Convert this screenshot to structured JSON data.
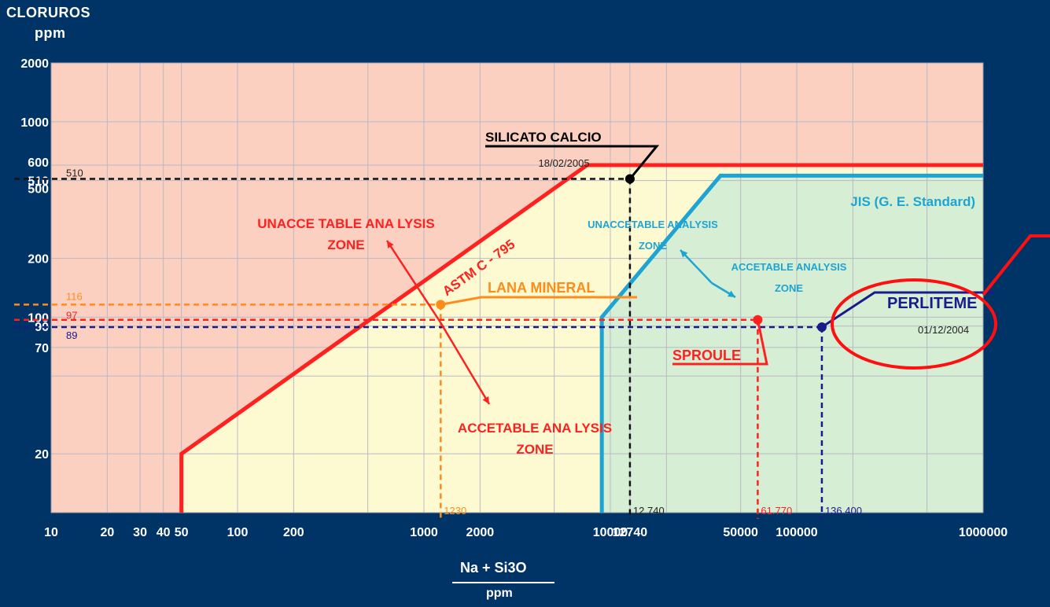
{
  "chart_data": {
    "type": "line",
    "ylabel": "CLORUROS",
    "ylabel_unit": "ppm",
    "xlabel": "Na + Si3O",
    "xlabel_unit": "ppm",
    "xscale": "log",
    "yscale": "log",
    "xlim": [
      10,
      1000000
    ],
    "ylim": [
      10,
      2000
    ],
    "x_ticks": [
      "10",
      "20",
      "30",
      "40",
      "50",
      "100",
      "200",
      "1000",
      "2000",
      "10000",
      "12740",
      "50000",
      "100000",
      "1000000"
    ],
    "y_ticks": [
      "2000",
      "1000",
      "600",
      "510",
      "500",
      "200",
      "100",
      "90",
      "70",
      "20"
    ],
    "grid": true,
    "zones": [
      {
        "name": "unacceptable",
        "color": "#fbd0c0"
      },
      {
        "name": "astm_acceptable",
        "color": "#fdfad2"
      },
      {
        "name": "jis_acceptable",
        "color": "#d6efd4"
      }
    ],
    "series": [
      {
        "name": "ASTM C - 795",
        "color": "#ff2020",
        "x": [
          50,
          50,
          7500,
          1000000
        ],
        "y": [
          10,
          20,
          600,
          600
        ]
      },
      {
        "name": "JIS (G. E. Standard)",
        "color": "#1ea4d2",
        "x": [
          9000,
          9000,
          39000,
          1000000
        ],
        "y": [
          10,
          100,
          530,
          530
        ]
      }
    ],
    "points": [
      {
        "name": "SILICATO CALCIO",
        "date": "18/02/2005",
        "x": 12740,
        "y": 510,
        "x_label": "12.740",
        "y_label": "510",
        "color": "#000000",
        "guide_color": "#111111"
      },
      {
        "name": "LANA MINERAL",
        "date": "",
        "x": 1230,
        "y": 116,
        "x_label": "1230",
        "y_label": "116",
        "color": "#ff8c1a",
        "guide_color": "#ff8c1a"
      },
      {
        "name": "SPROULE",
        "date": "",
        "x": 61770,
        "y": 97,
        "x_label": "61.770",
        "y_label": "97",
        "color": "#ff2020",
        "guide_color": "#ff2020"
      },
      {
        "name": "PERLITEME",
        "date": "01/12/2004",
        "x": 136400,
        "y": 89,
        "x_label": "136.400",
        "y_label": "89",
        "color": "#1a1a8c",
        "guide_color": "#1a1a8c"
      }
    ],
    "annotations": [
      {
        "key": "unacc_main",
        "lines": [
          "UNACCE TABLE ANA LYSIS",
          "ZONE"
        ],
        "color": "#ff2020"
      },
      {
        "key": "acc_main",
        "lines": [
          "ACCETABLE ANA LYSIS",
          "ZONE"
        ],
        "color": "#ff2020"
      },
      {
        "key": "unacc_jis",
        "lines": [
          "UNACCETABLE ANALYSIS",
          "ZONE"
        ],
        "color": "#1ea4d2"
      },
      {
        "key": "acc_jis",
        "lines": [
          "ACCETABLE ANALYSIS",
          "ZONE"
        ],
        "color": "#1ea4d2"
      }
    ]
  }
}
